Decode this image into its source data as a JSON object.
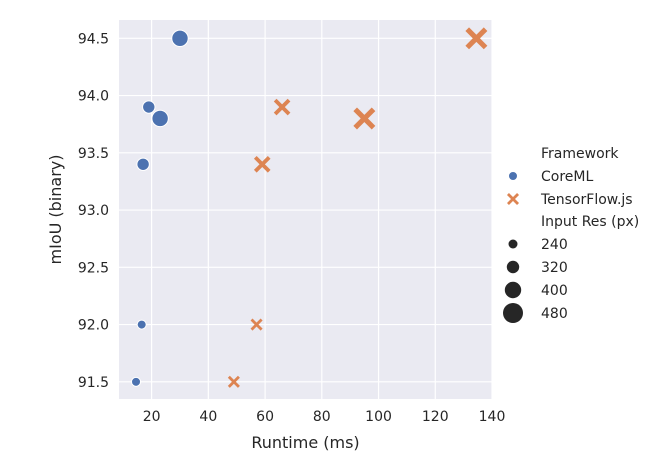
{
  "chart_data": {
    "type": "scatter",
    "title": "",
    "xlabel": "Runtime (ms)",
    "ylabel": "mIoU (binary)",
    "xlim": [
      8.5,
      140
    ],
    "ylim": [
      91.35,
      94.66
    ],
    "xticks": [
      20,
      40,
      60,
      80,
      100,
      120,
      140
    ],
    "yticks": [
      91.5,
      92.0,
      92.5,
      93.0,
      93.5,
      94.0,
      94.5
    ],
    "xtick_labels": [
      "20",
      "40",
      "60",
      "80",
      "100",
      "120",
      "140"
    ],
    "ytick_labels": [
      "91.5",
      "92.0",
      "92.5",
      "93.0",
      "93.5",
      "94.0",
      "94.5"
    ],
    "grid": true,
    "background": "#eaeaf2",
    "legend_placement": "right",
    "series": [
      {
        "name": "CoreML",
        "marker": "circle",
        "color": "#4c72b0",
        "points": [
          {
            "x": 14.5,
            "y": 91.5,
            "res": 240
          },
          {
            "x": 16.5,
            "y": 92.0,
            "res": 240
          },
          {
            "x": 17.0,
            "y": 93.4,
            "res": 320
          },
          {
            "x": 19.0,
            "y": 93.9,
            "res": 320
          },
          {
            "x": 23.0,
            "y": 93.8,
            "res": 400
          },
          {
            "x": 30.0,
            "y": 94.5,
            "res": 400
          }
        ]
      },
      {
        "name": "TensorFlow.js",
        "marker": "x",
        "color": "#dd8452",
        "points": [
          {
            "x": 49.0,
            "y": 91.5,
            "res": 240
          },
          {
            "x": 57.0,
            "y": 92.0,
            "res": 240
          },
          {
            "x": 59.0,
            "y": 93.4,
            "res": 320
          },
          {
            "x": 66.0,
            "y": 93.9,
            "res": 320
          },
          {
            "x": 95.0,
            "y": 93.8,
            "res": 400
          },
          {
            "x": 134.5,
            "y": 94.5,
            "res": 400
          }
        ]
      }
    ],
    "legend": {
      "hue_title": "Framework",
      "hue_entries": [
        "CoreML",
        "TensorFlow.js"
      ],
      "size_title": "Input Res (px)",
      "size_entries": [
        "240",
        "320",
        "400",
        "480"
      ]
    }
  }
}
